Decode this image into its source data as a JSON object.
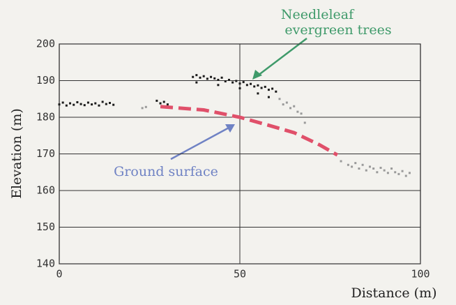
{
  "chart_data": {
    "type": "scatter",
    "xlabel": "Distance (m)",
    "ylabel": "Elevation (m)",
    "xlim": [
      0,
      100
    ],
    "xticks": [
      0,
      50,
      100
    ],
    "ylim": [
      140,
      200
    ],
    "yticks": [
      140,
      150,
      160,
      170,
      180,
      190,
      200
    ],
    "grid": true,
    "series": [
      {
        "color": "#1a1a1a",
        "x": [
          0,
          1,
          2,
          3,
          4,
          5,
          6,
          7,
          8,
          9,
          10,
          11,
          12,
          13,
          14,
          15,
          27,
          28,
          29,
          30,
          37,
          38,
          39,
          40,
          41,
          42,
          43,
          44,
          45,
          46,
          47,
          48,
          49,
          50,
          51,
          52,
          53,
          54,
          55,
          56,
          57,
          58,
          59,
          60,
          38,
          44,
          50,
          55,
          58
        ],
        "y": [
          183.5,
          184,
          183.2,
          183.8,
          183.4,
          184.1,
          183.6,
          183.3,
          184,
          183.5,
          183.8,
          183.2,
          184.2,
          183.6,
          183.9,
          183.4,
          184.5,
          183.8,
          184.2,
          183.5,
          191,
          191.5,
          190.8,
          191.2,
          190.5,
          191,
          190.6,
          190.2,
          190.8,
          189.8,
          190.2,
          189.5,
          189.9,
          189.2,
          189.6,
          188.8,
          189.1,
          188.4,
          188.7,
          188,
          188.3,
          187.5,
          187.8,
          187,
          189.5,
          188.8,
          187.9,
          186.5,
          185.5
        ]
      },
      {
        "color": "#9a9a9a",
        "x": [
          23,
          24,
          61,
          62,
          63,
          64,
          65,
          66,
          67,
          68,
          78,
          80,
          81,
          82,
          83,
          84,
          85,
          86,
          87,
          88,
          89,
          90,
          91,
          92,
          93,
          94,
          95,
          96,
          97
        ],
        "y": [
          182.5,
          182.8,
          185,
          183.5,
          184,
          182.5,
          183,
          181.5,
          181,
          178.5,
          168,
          167,
          166.5,
          167.5,
          166,
          167,
          165.5,
          166.5,
          166,
          165,
          166.2,
          165.5,
          164.8,
          166,
          165,
          164.5,
          165.3,
          164,
          164.8
        ]
      }
    ],
    "ground_line": {
      "color": "#e0506a",
      "x": [
        28,
        40,
        50,
        58,
        65,
        72,
        77
      ],
      "y": [
        182.9,
        182,
        180,
        177.8,
        175.8,
        172.5,
        169.7
      ]
    },
    "annotations": [
      {
        "lines": [
          "Needleleaf",
          "evergreen trees"
        ],
        "color": "#3f9a6a"
      },
      {
        "lines": [
          "Ground surface"
        ],
        "color": "#6f82c4"
      }
    ]
  }
}
